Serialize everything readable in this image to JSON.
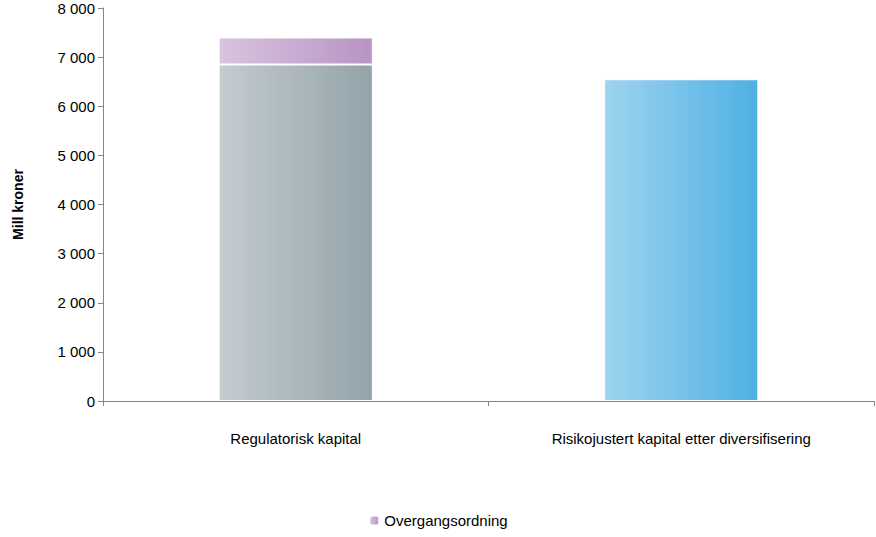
{
  "chart_data": {
    "type": "bar",
    "stacked": true,
    "y_label": "Mill kroner",
    "categories": [
      "Regulatorisk kapital",
      "Risikojustert kapital etter diversifisering"
    ],
    "series": [
      {
        "colors": [
          "#93a3aa",
          "#4fb0e3"
        ],
        "values": [
          6850,
          6550
        ]
      },
      {
        "name": "Overgangsordning",
        "color": "#b894c4",
        "values": [
          550,
          null
        ]
      }
    ],
    "ylim": [
      0,
      8000
    ],
    "yticks": [
      0,
      {
        "value": 1000,
        "label": "1 000"
      },
      {
        "value": 2000,
        "label": "2 000"
      },
      {
        "value": 3000,
        "label": "3 000"
      },
      {
        "value": 4000,
        "label": "4 000"
      },
      {
        "value": 5000,
        "label": "5 000"
      },
      {
        "value": 6000,
        "label": "6 000"
      },
      {
        "value": 7000,
        "label": "7 000"
      },
      {
        "value": 8000,
        "label": "8 000"
      }
    ],
    "grid": false,
    "legend": "bottom"
  }
}
